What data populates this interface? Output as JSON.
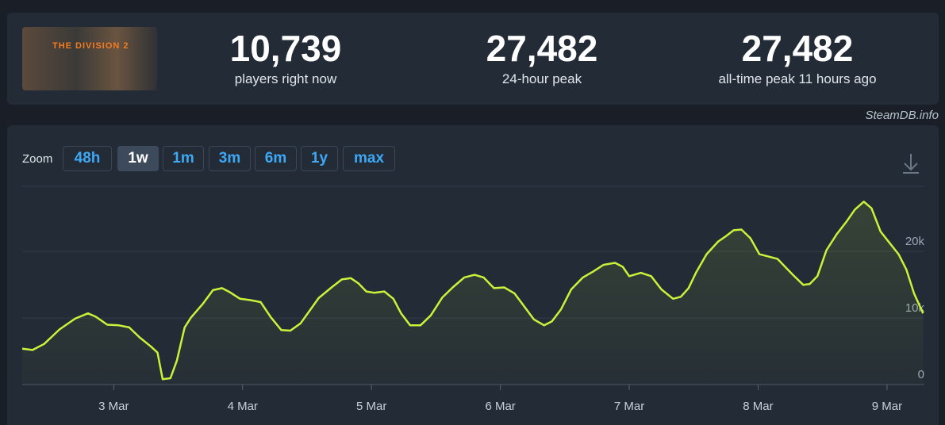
{
  "header": {
    "game_title": "THE DIVISION 2",
    "stats": [
      {
        "value": "10,739",
        "label": "players right now"
      },
      {
        "value": "27,482",
        "label": "24-hour peak"
      },
      {
        "value": "27,482",
        "label": "all-time peak 11 hours ago"
      }
    ]
  },
  "watermark": "SteamDB.info",
  "zoom": {
    "label": "Zoom",
    "options": [
      "48h",
      "1w",
      "1m",
      "3m",
      "6m",
      "1y",
      "max"
    ],
    "active": 1
  },
  "chart_data": {
    "type": "line",
    "color": "#c9f23a",
    "x": [
      2.29,
      2.37,
      2.46,
      2.58,
      2.7,
      2.8,
      2.86,
      2.95,
      3.04,
      3.12,
      3.2,
      3.29,
      3.34,
      3.38,
      3.44,
      3.49,
      3.55,
      3.6,
      3.69,
      3.77,
      3.84,
      3.9,
      3.98,
      4.06,
      4.14,
      4.22,
      4.3,
      4.37,
      4.45,
      4.52,
      4.59,
      4.69,
      4.77,
      4.84,
      4.9,
      4.96,
      5.02,
      5.1,
      5.17,
      5.23,
      5.3,
      5.38,
      5.46,
      5.55,
      5.63,
      5.72,
      5.8,
      5.87,
      5.95,
      6.03,
      6.11,
      6.18,
      6.26,
      6.34,
      6.4,
      6.47,
      6.55,
      6.64,
      6.72,
      6.8,
      6.89,
      6.95,
      7.0,
      7.09,
      7.17,
      7.25,
      7.34,
      7.4,
      7.46,
      7.52,
      7.6,
      7.69,
      7.75,
      7.81,
      7.87,
      7.94,
      8.01,
      8.09,
      8.15,
      8.22,
      8.27,
      8.35,
      8.4,
      8.46,
      8.53,
      8.61,
      8.69,
      8.75,
      8.82,
      8.88,
      8.95,
      9.02,
      9.09,
      9.15,
      9.21,
      9.28
    ],
    "values": [
      5400,
      5200,
      6100,
      8300,
      9900,
      10700,
      10200,
      9000,
      8900,
      8600,
      7100,
      5700,
      4800,
      800,
      950,
      3600,
      8600,
      10100,
      12100,
      14200,
      14500,
      13900,
      12900,
      12700,
      12400,
      10100,
      8200,
      8100,
      9200,
      11100,
      13000,
      14600,
      15800,
      16000,
      15200,
      14000,
      13800,
      14000,
      12900,
      10700,
      8900,
      8900,
      10400,
      13100,
      14600,
      16100,
      16500,
      16100,
      14500,
      14600,
      13700,
      11900,
      9800,
      8900,
      9500,
      11300,
      14300,
      16100,
      17000,
      18000,
      18300,
      17700,
      16300,
      16800,
      16300,
      14300,
      12900,
      13200,
      14500,
      16900,
      19600,
      21500,
      22300,
      23200,
      23300,
      22000,
      19600,
      19200,
      18900,
      17500,
      16500,
      15000,
      15100,
      16300,
      20200,
      22600,
      24600,
      26300,
      27500,
      26500,
      23000,
      21300,
      19600,
      17300,
      13700,
      10700
    ],
    "xlim": [
      2.29,
      9.29
    ],
    "xticks": [
      {
        "value": 3,
        "label": "3 Mar"
      },
      {
        "value": 4,
        "label": "4 Mar"
      },
      {
        "value": 5,
        "label": "5 Mar"
      },
      {
        "value": 6,
        "label": "6 Mar"
      },
      {
        "value": 7,
        "label": "7 Mar"
      },
      {
        "value": 8,
        "label": "8 Mar"
      },
      {
        "value": 9,
        "label": "9 Mar"
      }
    ],
    "ylim": [
      0,
      29800
    ],
    "yticks": [
      0,
      {
        "value": 10000,
        "label": "10k"
      },
      {
        "value": 20000,
        "label": "20k"
      }
    ],
    "grid": true
  }
}
